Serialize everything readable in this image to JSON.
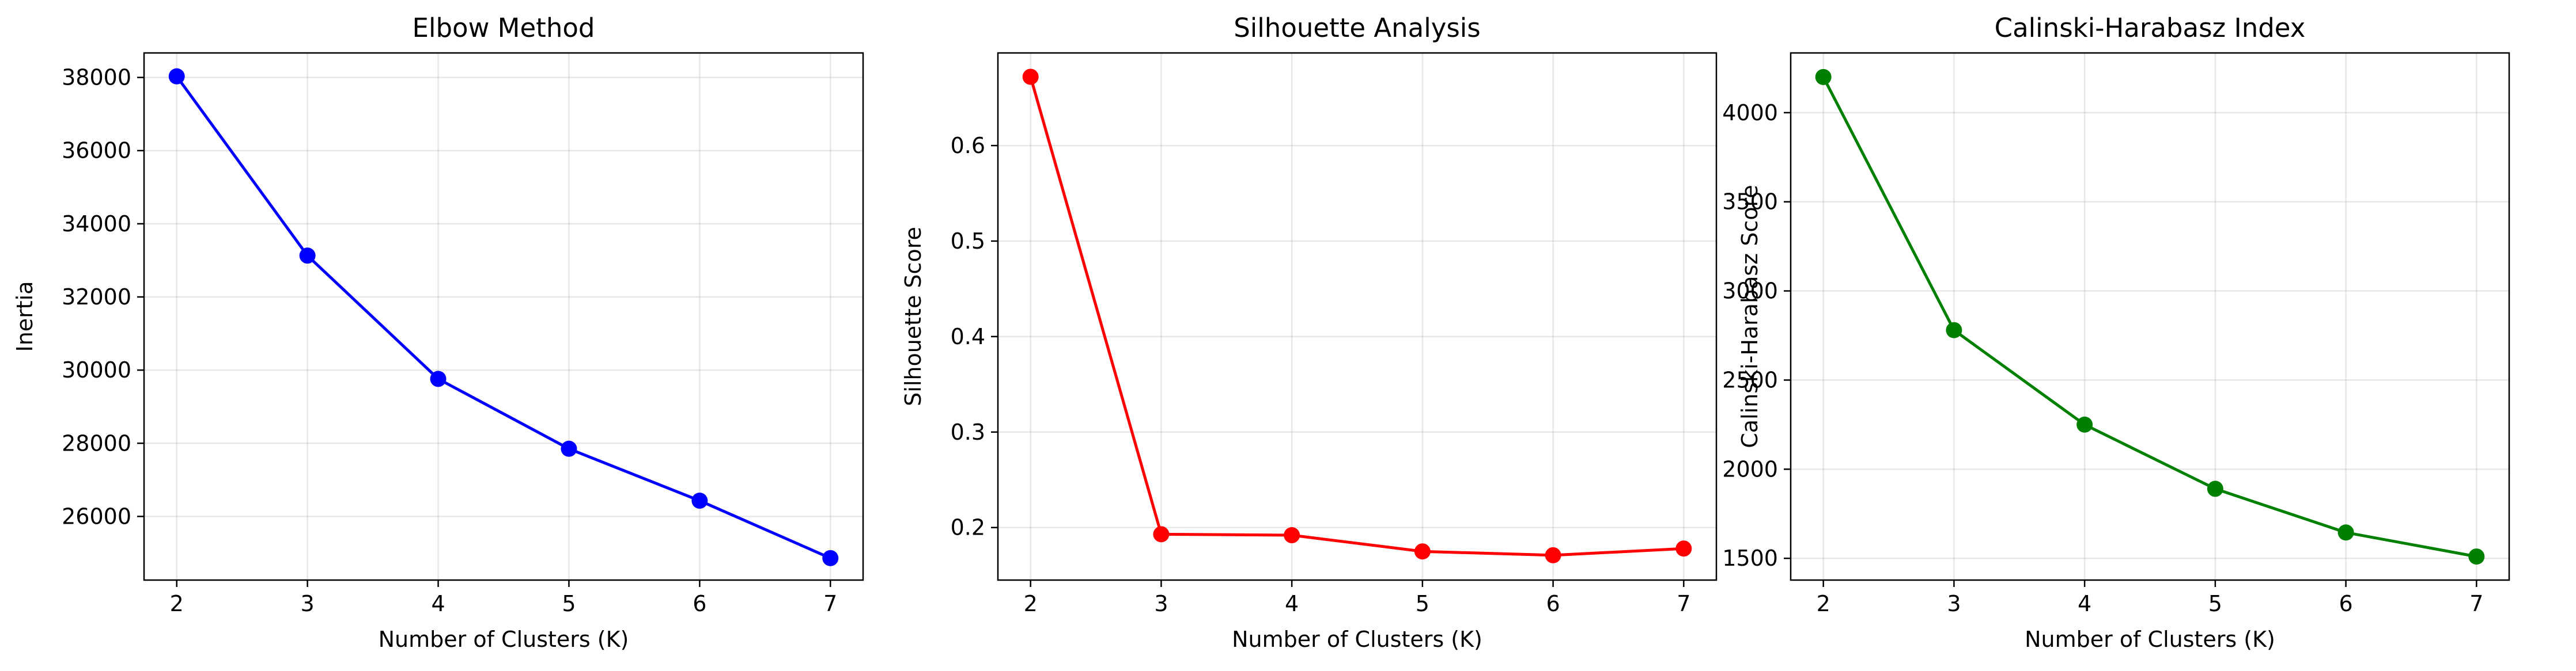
{
  "chart_data": [
    {
      "type": "line",
      "title": "Elbow Method",
      "xlabel": "Number of Clusters (K)",
      "ylabel": "Inertia",
      "x": [
        2,
        3,
        4,
        5,
        6,
        7
      ],
      "xticks": [
        2,
        3,
        4,
        5,
        6,
        7
      ],
      "xlim": [
        1.75,
        7.25
      ],
      "yticks": [
        26000,
        28000,
        30000,
        32000,
        34000,
        36000,
        38000
      ],
      "ylim": [
        24260,
        38670
      ],
      "grid": true,
      "series": [
        {
          "values": [
            38030,
            33130,
            29760,
            27850,
            26430,
            24860
          ],
          "color": "#0000ff",
          "marker": "circle"
        }
      ]
    },
    {
      "type": "line",
      "title": "Silhouette Analysis",
      "xlabel": "Number of Clusters (K)",
      "ylabel": "Silhouette Score",
      "x": [
        2,
        3,
        4,
        5,
        6,
        7
      ],
      "xticks": [
        2,
        3,
        4,
        5,
        6,
        7
      ],
      "xlim": [
        1.75,
        7.25
      ],
      "yticks": [
        0.2,
        0.3,
        0.4,
        0.5,
        0.6
      ],
      "ylim": [
        0.145,
        0.697
      ],
      "grid": true,
      "series": [
        {
          "values": [
            0.672,
            0.193,
            0.192,
            0.175,
            0.171,
            0.178
          ],
          "color": "#ff0000",
          "marker": "circle"
        }
      ]
    },
    {
      "type": "line",
      "title": "Calinski-Harabasz Index",
      "xlabel": "Number of Clusters (K)",
      "ylabel": "Calinski-Harabasz Score",
      "x": [
        2,
        3,
        4,
        5,
        6,
        7
      ],
      "xticks": [
        2,
        3,
        4,
        5,
        6,
        7
      ],
      "xlim": [
        1.75,
        7.25
      ],
      "yticks": [
        1500,
        2000,
        2500,
        3000,
        3500,
        4000
      ],
      "ylim": [
        1378,
        4335
      ],
      "grid": true,
      "series": [
        {
          "values": [
            4200,
            2780,
            2250,
            1890,
            1645,
            1510
          ],
          "color": "#008000",
          "marker": "circle"
        }
      ]
    }
  ]
}
